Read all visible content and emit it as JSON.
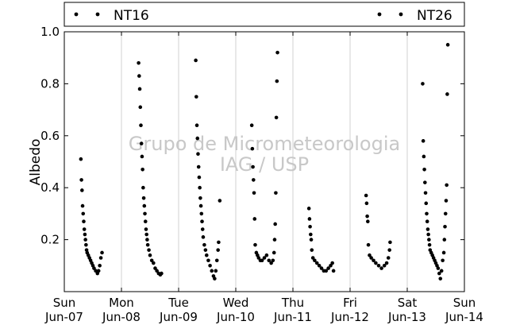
{
  "watermark": {
    "line1": "Grupo de Micrometeorologia",
    "line2": "IAG / USP"
  },
  "legend": {
    "items": [
      {
        "label": "NT16",
        "color": "#000000"
      },
      {
        "label": "NT26",
        "color": "#000000"
      }
    ]
  },
  "chart_data": {
    "type": "scatter",
    "ylabel": "Albedo",
    "xlabel": "",
    "ylim": [
      0,
      1.0
    ],
    "xlim": [
      0,
      7
    ],
    "yticks": [
      0.2,
      0.4,
      0.6,
      0.8,
      1.0
    ],
    "ytick_labels": [
      "0.2",
      "0.4",
      "0.6",
      "0.8",
      "1.0"
    ],
    "xticks": [
      0,
      1,
      2,
      3,
      4,
      5,
      6,
      7
    ],
    "xtick_labels": [
      [
        "Sun",
        "Jun-07"
      ],
      [
        "Mon",
        "Jun-08"
      ],
      [
        "Tue",
        "Jun-09"
      ],
      [
        "Wed",
        "Jun-10"
      ],
      [
        "Thu",
        "Jun-11"
      ],
      [
        "Fri",
        "Jun-12"
      ],
      [
        "Sat",
        "Jun-13"
      ],
      [
        "Sun",
        "Jun-14"
      ]
    ],
    "grid": "vertical",
    "legend_position": "top",
    "series": [
      {
        "name": "NT16",
        "points": [
          [
            0.29,
            0.51
          ],
          [
            0.3,
            0.43
          ],
          [
            0.31,
            0.39
          ],
          [
            0.32,
            0.33
          ],
          [
            0.33,
            0.3
          ],
          [
            0.34,
            0.27
          ],
          [
            0.35,
            0.24
          ],
          [
            0.36,
            0.22
          ],
          [
            0.37,
            0.2
          ],
          [
            0.38,
            0.18
          ],
          [
            0.39,
            0.16
          ],
          [
            0.4,
            0.15
          ],
          [
            0.42,
            0.14
          ],
          [
            0.44,
            0.13
          ],
          [
            0.46,
            0.12
          ],
          [
            0.48,
            0.11
          ],
          [
            0.5,
            0.1
          ],
          [
            0.52,
            0.09
          ],
          [
            0.55,
            0.08
          ],
          [
            0.58,
            0.07
          ],
          [
            0.6,
            0.08
          ],
          [
            0.62,
            0.1
          ],
          [
            0.64,
            0.13
          ],
          [
            0.66,
            0.15
          ],
          [
            1.3,
            0.88
          ],
          [
            1.31,
            0.83
          ],
          [
            1.32,
            0.78
          ],
          [
            1.33,
            0.71
          ],
          [
            1.34,
            0.64
          ],
          [
            1.35,
            0.57
          ],
          [
            1.36,
            0.52
          ],
          [
            1.37,
            0.47
          ],
          [
            1.38,
            0.4
          ],
          [
            1.39,
            0.36
          ],
          [
            1.4,
            0.33
          ],
          [
            1.41,
            0.3
          ],
          [
            1.42,
            0.27
          ],
          [
            1.43,
            0.24
          ],
          [
            1.44,
            0.22
          ],
          [
            1.45,
            0.2
          ],
          [
            1.46,
            0.18
          ],
          [
            1.48,
            0.16
          ],
          [
            1.5,
            0.14
          ],
          [
            1.53,
            0.12
          ],
          [
            1.56,
            0.11
          ],
          [
            1.59,
            0.09
          ],
          [
            1.62,
            0.08
          ],
          [
            1.65,
            0.07
          ],
          [
            1.68,
            0.065
          ],
          [
            1.7,
            0.07
          ],
          [
            2.3,
            0.89
          ],
          [
            2.31,
            0.75
          ],
          [
            2.32,
            0.64
          ],
          [
            2.33,
            0.59
          ],
          [
            2.34,
            0.53
          ],
          [
            2.35,
            0.48
          ],
          [
            2.36,
            0.44
          ],
          [
            2.37,
            0.4
          ],
          [
            2.38,
            0.36
          ],
          [
            2.39,
            0.33
          ],
          [
            2.4,
            0.3
          ],
          [
            2.41,
            0.27
          ],
          [
            2.42,
            0.24
          ],
          [
            2.43,
            0.21
          ],
          [
            2.45,
            0.18
          ],
          [
            2.47,
            0.16
          ],
          [
            2.49,
            0.14
          ],
          [
            2.52,
            0.12
          ],
          [
            2.55,
            0.1
          ],
          [
            2.58,
            0.08
          ],
          [
            2.61,
            0.06
          ],
          [
            2.63,
            0.05
          ],
          [
            2.65,
            0.08
          ],
          [
            2.67,
            0.12
          ],
          [
            2.69,
            0.16
          ],
          [
            2.7,
            0.19
          ],
          [
            2.72,
            0.35
          ],
          [
            3.28,
            0.64
          ],
          [
            3.29,
            0.55
          ],
          [
            3.3,
            0.48
          ],
          [
            3.31,
            0.43
          ],
          [
            3.32,
            0.38
          ],
          [
            3.33,
            0.28
          ],
          [
            3.34,
            0.18
          ],
          [
            3.36,
            0.15
          ],
          [
            3.38,
            0.14
          ],
          [
            3.4,
            0.13
          ],
          [
            3.43,
            0.12
          ],
          [
            3.46,
            0.12
          ],
          [
            3.5,
            0.13
          ],
          [
            3.54,
            0.14
          ],
          [
            3.58,
            0.12
          ],
          [
            3.62,
            0.11
          ],
          [
            3.65,
            0.12
          ],
          [
            3.67,
            0.15
          ],
          [
            3.68,
            0.2
          ],
          [
            3.69,
            0.26
          ],
          [
            3.7,
            0.38
          ],
          [
            3.71,
            0.67
          ],
          [
            3.72,
            0.81
          ],
          [
            3.73,
            0.92
          ],
          [
            4.28,
            0.32
          ],
          [
            4.29,
            0.28
          ],
          [
            4.3,
            0.25
          ],
          [
            4.31,
            0.22
          ],
          [
            4.32,
            0.2
          ],
          [
            4.33,
            0.16
          ],
          [
            4.35,
            0.13
          ],
          [
            4.38,
            0.12
          ],
          [
            4.42,
            0.11
          ],
          [
            4.46,
            0.1
          ],
          [
            4.5,
            0.09
          ],
          [
            4.54,
            0.08
          ],
          [
            4.58,
            0.08
          ],
          [
            4.62,
            0.09
          ],
          [
            4.66,
            0.1
          ],
          [
            4.69,
            0.11
          ],
          [
            4.71,
            0.08
          ],
          [
            5.28,
            0.37
          ],
          [
            5.29,
            0.34
          ],
          [
            5.3,
            0.29
          ],
          [
            5.31,
            0.27
          ],
          [
            5.32,
            0.18
          ],
          [
            5.34,
            0.14
          ],
          [
            5.37,
            0.13
          ],
          [
            5.41,
            0.12
          ],
          [
            5.45,
            0.11
          ],
          [
            5.5,
            0.1
          ],
          [
            5.55,
            0.09
          ],
          [
            5.6,
            0.1
          ],
          [
            5.64,
            0.11
          ],
          [
            5.67,
            0.13
          ],
          [
            5.69,
            0.16
          ],
          [
            5.7,
            0.19
          ],
          [
            6.27,
            0.8
          ],
          [
            6.28,
            0.58
          ],
          [
            6.29,
            0.52
          ],
          [
            6.3,
            0.47
          ],
          [
            6.31,
            0.42
          ],
          [
            6.32,
            0.38
          ],
          [
            6.33,
            0.34
          ],
          [
            6.34,
            0.3
          ],
          [
            6.35,
            0.27
          ],
          [
            6.36,
            0.24
          ],
          [
            6.37,
            0.22
          ],
          [
            6.38,
            0.2
          ],
          [
            6.39,
            0.18
          ],
          [
            6.4,
            0.16
          ],
          [
            6.42,
            0.15
          ],
          [
            6.44,
            0.14
          ],
          [
            6.46,
            0.13
          ],
          [
            6.48,
            0.12
          ],
          [
            6.5,
            0.11
          ],
          [
            6.52,
            0.1
          ],
          [
            6.54,
            0.09
          ],
          [
            6.56,
            0.07
          ],
          [
            6.58,
            0.05
          ],
          [
            6.6,
            0.08
          ],
          [
            6.62,
            0.12
          ],
          [
            6.64,
            0.15
          ],
          [
            6.65,
            0.2
          ],
          [
            6.66,
            0.25
          ],
          [
            6.67,
            0.3
          ],
          [
            6.68,
            0.35
          ],
          [
            6.69,
            0.41
          ],
          [
            6.7,
            0.76
          ],
          [
            6.71,
            0.95
          ]
        ]
      }
    ]
  }
}
